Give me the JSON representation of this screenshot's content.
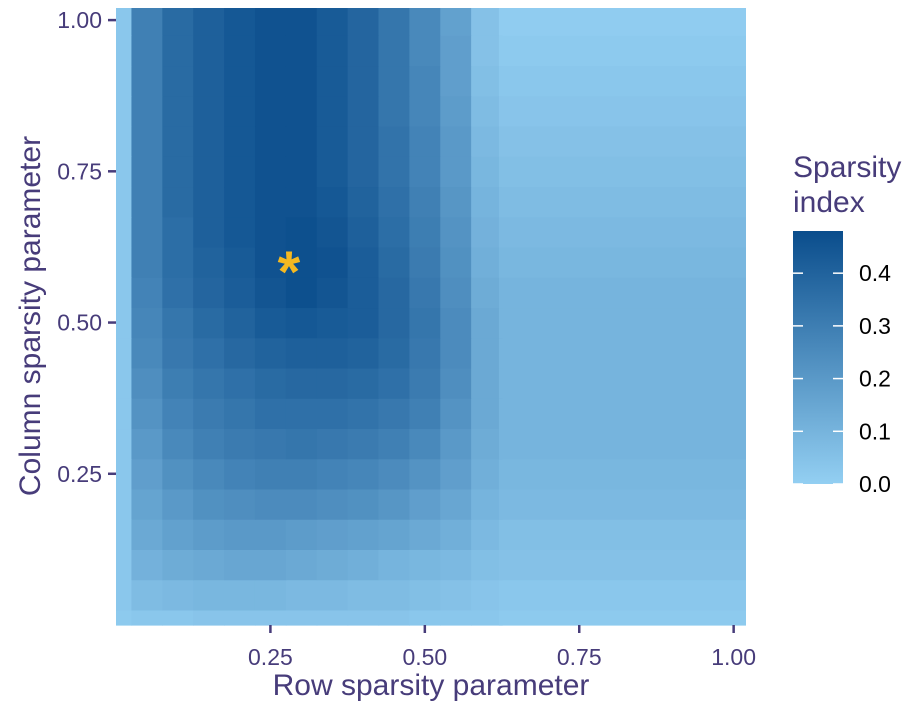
{
  "chart_data": {
    "type": "heatmap",
    "title": "",
    "xlabel": "Row sparsity parameter",
    "ylabel": "Column sparsity parameter",
    "x_ticks": [
      0.25,
      0.5,
      0.75,
      1.0
    ],
    "x_tick_labels": [
      "0.25",
      "0.50",
      "0.75",
      "1.00"
    ],
    "y_ticks": [
      0.25,
      0.5,
      0.75,
      1.0
    ],
    "y_tick_labels": [
      "0.25",
      "0.50",
      "0.75",
      "1.00"
    ],
    "xlim": [
      0.0,
      1.02
    ],
    "ylim": [
      0.0,
      1.02
    ],
    "x_centers": [
      0.0,
      0.05,
      0.1,
      0.15,
      0.2,
      0.25,
      0.3,
      0.35,
      0.4,
      0.45,
      0.5,
      0.55,
      0.6
    ],
    "y_centers": [
      0.0,
      0.05,
      0.1,
      0.15,
      0.2,
      0.25,
      0.3,
      0.35,
      0.4,
      0.45,
      0.5,
      0.55,
      0.6,
      0.65,
      0.7,
      0.75,
      0.8,
      0.85,
      0.9,
      0.95,
      1.0
    ],
    "x_uniform_from": 0.62,
    "uniform_region_note_values": [
      0.02,
      0.03,
      0.05,
      0.06,
      0.08,
      0.09,
      0.1,
      0.1,
      0.1,
      0.1,
      0.1,
      0.1,
      0.09,
      0.08,
      0.07,
      0.06,
      0.05,
      0.04,
      0.03,
      0.02,
      0.01
    ],
    "values": [
      [
        0.02,
        0.03,
        0.03,
        0.04,
        0.04,
        0.04,
        0.04,
        0.04,
        0.04,
        0.04,
        0.03,
        0.03,
        0.03
      ],
      [
        0.03,
        0.07,
        0.08,
        0.09,
        0.09,
        0.09,
        0.08,
        0.08,
        0.07,
        0.07,
        0.06,
        0.05,
        0.04
      ],
      [
        0.03,
        0.11,
        0.13,
        0.14,
        0.15,
        0.15,
        0.14,
        0.13,
        0.12,
        0.1,
        0.09,
        0.08,
        0.06
      ],
      [
        0.03,
        0.14,
        0.17,
        0.19,
        0.2,
        0.2,
        0.19,
        0.18,
        0.17,
        0.16,
        0.14,
        0.12,
        0.08
      ],
      [
        0.03,
        0.16,
        0.2,
        0.23,
        0.24,
        0.25,
        0.25,
        0.24,
        0.23,
        0.21,
        0.18,
        0.15,
        0.1
      ],
      [
        0.03,
        0.18,
        0.23,
        0.26,
        0.28,
        0.29,
        0.29,
        0.28,
        0.27,
        0.25,
        0.22,
        0.18,
        0.12
      ],
      [
        0.03,
        0.2,
        0.26,
        0.29,
        0.31,
        0.32,
        0.33,
        0.32,
        0.31,
        0.29,
        0.26,
        0.2,
        0.13
      ],
      [
        0.03,
        0.22,
        0.28,
        0.31,
        0.33,
        0.35,
        0.35,
        0.35,
        0.34,
        0.32,
        0.29,
        0.22,
        0.14
      ],
      [
        0.03,
        0.24,
        0.3,
        0.33,
        0.35,
        0.37,
        0.38,
        0.38,
        0.37,
        0.35,
        0.31,
        0.24,
        0.14
      ],
      [
        0.03,
        0.26,
        0.32,
        0.35,
        0.38,
        0.4,
        0.41,
        0.41,
        0.4,
        0.37,
        0.32,
        0.25,
        0.14
      ],
      [
        0.03,
        0.27,
        0.33,
        0.37,
        0.4,
        0.43,
        0.44,
        0.43,
        0.42,
        0.38,
        0.33,
        0.25,
        0.14
      ],
      [
        0.03,
        0.28,
        0.35,
        0.39,
        0.42,
        0.45,
        0.47,
        0.45,
        0.42,
        0.38,
        0.32,
        0.24,
        0.13
      ],
      [
        0.03,
        0.29,
        0.36,
        0.4,
        0.43,
        0.46,
        0.47,
        0.46,
        0.42,
        0.37,
        0.31,
        0.23,
        0.12
      ],
      [
        0.03,
        0.29,
        0.36,
        0.41,
        0.44,
        0.46,
        0.47,
        0.45,
        0.41,
        0.36,
        0.3,
        0.22,
        0.11
      ],
      [
        0.03,
        0.29,
        0.37,
        0.41,
        0.44,
        0.46,
        0.46,
        0.44,
        0.4,
        0.35,
        0.29,
        0.21,
        0.1
      ],
      [
        0.03,
        0.29,
        0.37,
        0.41,
        0.44,
        0.46,
        0.46,
        0.43,
        0.39,
        0.34,
        0.28,
        0.2,
        0.09
      ],
      [
        0.03,
        0.29,
        0.37,
        0.41,
        0.44,
        0.46,
        0.46,
        0.43,
        0.39,
        0.34,
        0.28,
        0.2,
        0.08
      ],
      [
        0.03,
        0.29,
        0.37,
        0.41,
        0.44,
        0.46,
        0.46,
        0.43,
        0.39,
        0.33,
        0.27,
        0.19,
        0.07
      ],
      [
        0.03,
        0.29,
        0.37,
        0.41,
        0.44,
        0.46,
        0.46,
        0.43,
        0.39,
        0.33,
        0.27,
        0.18,
        0.06
      ],
      [
        0.03,
        0.29,
        0.37,
        0.41,
        0.44,
        0.46,
        0.46,
        0.43,
        0.39,
        0.33,
        0.26,
        0.18,
        0.05
      ],
      [
        0.03,
        0.29,
        0.37,
        0.41,
        0.44,
        0.46,
        0.46,
        0.43,
        0.39,
        0.33,
        0.26,
        0.17,
        0.05
      ]
    ],
    "marker": {
      "symbol": "*",
      "x": 0.28,
      "y": 0.6,
      "color": "#f5b921"
    },
    "legend": {
      "title_line1": "Sparsity",
      "title_line2": "index",
      "placement": "right",
      "range": [
        0.0,
        0.48
      ],
      "ticks": [
        0.0,
        0.1,
        0.2,
        0.3,
        0.4
      ],
      "tick_labels": [
        "0.0",
        "0.1",
        "0.2",
        "0.3",
        "0.4"
      ]
    },
    "colors": {
      "low": "#93cff2",
      "high": "#0a4d8c",
      "text": "#473c7a"
    },
    "grid": false
  }
}
